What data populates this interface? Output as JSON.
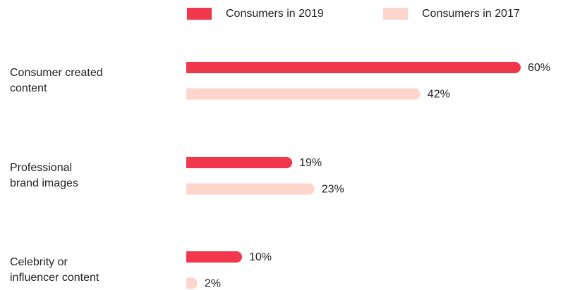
{
  "chart_data": {
    "type": "bar",
    "orientation": "horizontal",
    "categories": [
      "Consumer created\ncontent",
      "Professional\nbrand images",
      "Celebrity or\ninfluencer content"
    ],
    "series": [
      {
        "name": "Consumers in 2019",
        "color": "#f0374b",
        "values": [
          60,
          19,
          10
        ],
        "value_labels": [
          "60%",
          "19%",
          "10%"
        ]
      },
      {
        "name": "Consumers in 2017",
        "color": "#fdd5cc",
        "values": [
          42,
          23,
          2
        ],
        "value_labels": [
          "42%",
          "23%",
          "2%"
        ]
      }
    ],
    "legend": "top"
  }
}
